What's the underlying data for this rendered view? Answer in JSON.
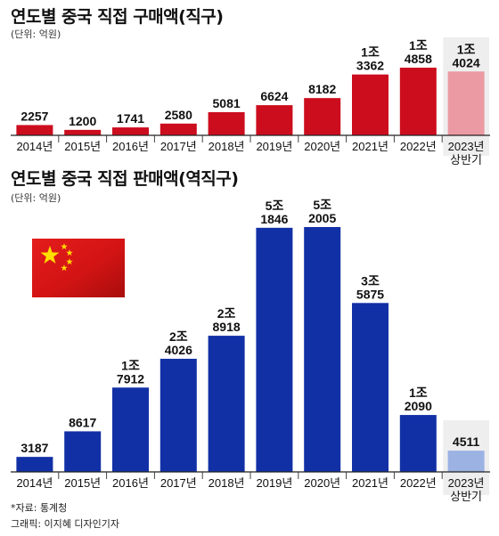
{
  "chart_data": [
    {
      "type": "bar",
      "title": "연도별 중국 직접 구매액(직구)",
      "unit": "(단위: 억원)",
      "categories": [
        "2014년",
        "2015년",
        "2016년",
        "2017년",
        "2018년",
        "2019년",
        "2020년",
        "2021년",
        "2022년",
        "2023년 상반기"
      ],
      "values": [
        2257,
        1200,
        1741,
        2580,
        5081,
        6624,
        8182,
        13362,
        14858,
        14024
      ],
      "labels": [
        [
          "2257"
        ],
        [
          "1200"
        ],
        [
          "1741"
        ],
        [
          "2580"
        ],
        [
          "5081"
        ],
        [
          "6624"
        ],
        [
          "8182"
        ],
        [
          "1조",
          "3362"
        ],
        [
          "1조",
          "4858"
        ],
        [
          "1조",
          "4024"
        ]
      ],
      "bar_color": "#cc0d1e",
      "highlight_color": "#eb9aa3",
      "highlight_index": 9
    },
    {
      "type": "bar",
      "title": "연도별 중국 직접 판매액(역직구)",
      "unit": "(단위: 억원)",
      "categories": [
        "2014년",
        "2015년",
        "2016년",
        "2017년",
        "2018년",
        "2019년",
        "2020년",
        "2021년",
        "2022년",
        "2023년 상반기"
      ],
      "values": [
        3187,
        8617,
        17912,
        24026,
        28918,
        51846,
        52005,
        35875,
        12090,
        4511
      ],
      "labels": [
        [
          "3187"
        ],
        [
          "8617"
        ],
        [
          "1조",
          "7912"
        ],
        [
          "2조",
          "4026"
        ],
        [
          "2조",
          "8918"
        ],
        [
          "5조",
          "1846"
        ],
        [
          "5조",
          "2005"
        ],
        [
          "3조",
          "5875"
        ],
        [
          "1조",
          "2090"
        ],
        [
          "4511"
        ]
      ],
      "bar_color": "#1230a6",
      "highlight_color": "#9bb2e3",
      "highlight_index": 9
    }
  ],
  "source": "*자료: 통계청",
  "credit": "그래픽: 이지혜 디자인기자",
  "flag_icon": "china-flag-icon"
}
